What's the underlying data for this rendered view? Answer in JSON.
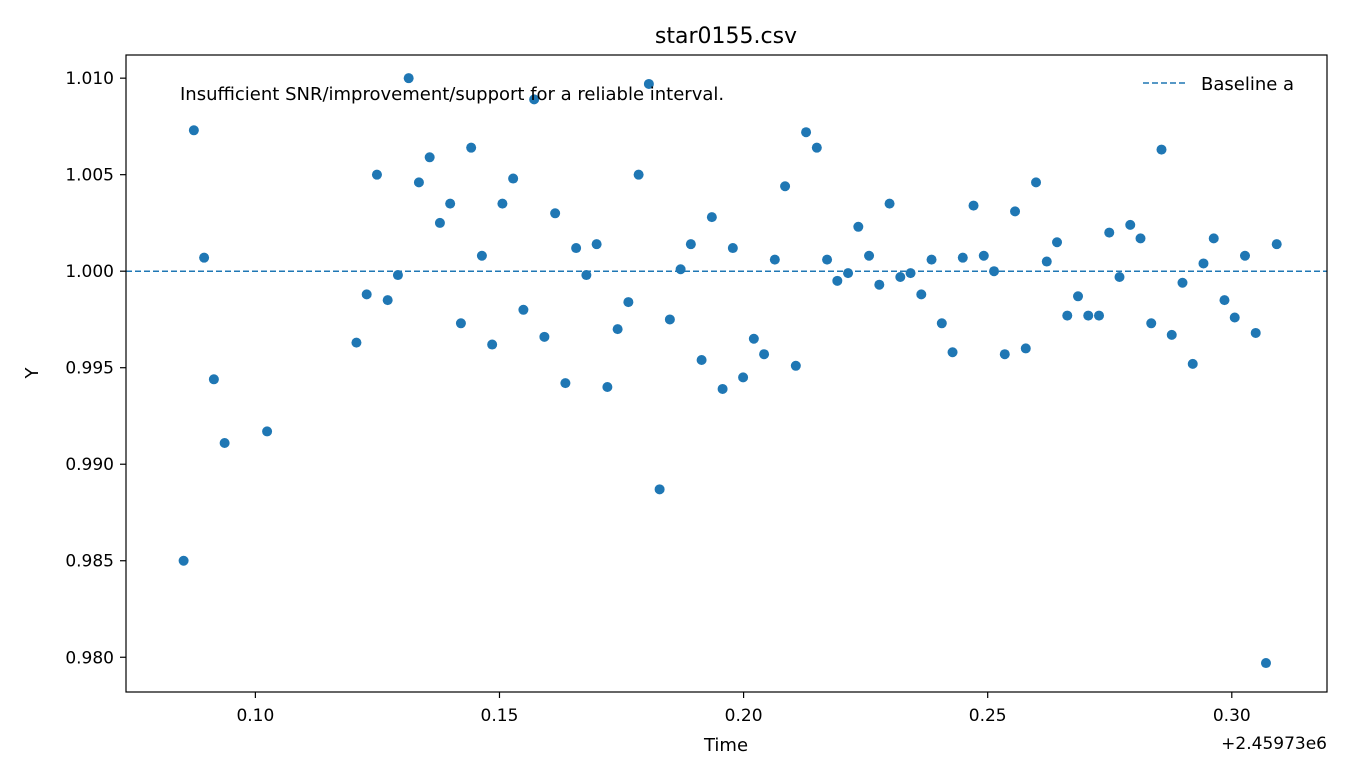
{
  "chart_data": {
    "type": "scatter",
    "title": "star0155.csv",
    "xlabel": "Time",
    "ylabel": "Y",
    "x_offset_label": "+2.45973e6",
    "annotation": "Insufficient SNR/improvement/support for a reliable interval.",
    "xlim": [
      0.0735,
      0.3195
    ],
    "ylim": [
      0.9782,
      1.0112
    ],
    "xticks": [
      0.1,
      0.15,
      0.2,
      0.25,
      0.3
    ],
    "xtick_labels": [
      "0.10",
      "0.15",
      "0.20",
      "0.25",
      "0.30"
    ],
    "yticks": [
      0.98,
      0.985,
      0.99,
      0.995,
      1.0,
      1.005,
      1.01
    ],
    "ytick_labels": [
      "0.980",
      "0.985",
      "0.990",
      "0.995",
      "1.000",
      "1.005",
      "1.010"
    ],
    "grid": false,
    "legend_position": "top-right",
    "colors": {
      "points": "#1f77b4",
      "baseline": "#1f77b4"
    },
    "baseline": {
      "name": "Baseline a",
      "y": 1.0,
      "style": "dashed"
    },
    "series": [
      {
        "x": [
          0.0853,
          0.0874,
          0.0895,
          0.0915,
          0.0937,
          0.1024,
          0.1207,
          0.1228,
          0.1249,
          0.1271,
          0.1292,
          0.1314,
          0.1335,
          0.1357,
          0.1378,
          0.1399,
          0.1421,
          0.1442,
          0.1464,
          0.1485,
          0.1506,
          0.1528,
          0.1549,
          0.1571,
          0.1592,
          0.1614,
          0.1635,
          0.1657,
          0.1678,
          0.1699,
          0.1721,
          0.1742,
          0.1764,
          0.1785,
          0.1806,
          0.1828,
          0.1849,
          0.1871,
          0.1892,
          0.1914,
          0.1935,
          0.1957,
          0.1978,
          0.1999,
          0.2021,
          0.2042,
          0.2064,
          0.2085,
          0.2107,
          0.2128,
          0.215,
          0.2171,
          0.2192,
          0.2214,
          0.2235,
          0.2257,
          0.2278,
          0.2299,
          0.2321,
          0.2342,
          0.2364,
          0.2385,
          0.2406,
          0.2428,
          0.2449,
          0.2471,
          0.2492,
          0.2513,
          0.2535,
          0.2556,
          0.2578,
          0.2599,
          0.2621,
          0.2642,
          0.2663,
          0.2685,
          0.2706,
          0.2728,
          0.2749,
          0.277,
          0.2792,
          0.2813,
          0.2835,
          0.2856,
          0.2877,
          0.2899,
          0.292,
          0.2942,
          0.2963,
          0.2985,
          0.3006,
          0.3027,
          0.3049,
          0.307,
          0.3092
        ],
        "y": [
          0.985,
          1.0073,
          1.0007,
          0.9944,
          0.9911,
          0.9917,
          0.9963,
          0.9988,
          1.005,
          0.9985,
          0.9998,
          1.01,
          1.0046,
          1.0059,
          1.0025,
          1.0035,
          0.9973,
          1.0064,
          1.0008,
          0.9962,
          1.0035,
          1.0048,
          0.998,
          1.0089,
          0.9966,
          1.003,
          0.9942,
          1.0012,
          0.9998,
          1.0014,
          0.994,
          0.997,
          0.9984,
          1.005,
          1.0097,
          0.9887,
          0.9975,
          1.0001,
          1.0014,
          0.9954,
          1.0028,
          0.9939,
          1.0012,
          0.9945,
          0.9965,
          0.9957,
          1.0006,
          1.0044,
          0.9951,
          1.0072,
          1.0064,
          1.0006,
          0.9995,
          0.9999,
          1.0023,
          1.0008,
          0.9993,
          1.0035,
          0.9997,
          0.9999,
          0.9988,
          1.0006,
          0.9973,
          0.9958,
          1.0007,
          1.0034,
          1.0008,
          1.0,
          0.9957,
          1.0031,
          0.996,
          1.0046,
          1.0005,
          1.0015,
          0.9977,
          0.9987,
          0.9977,
          0.9977,
          1.002,
          0.9997,
          1.0024,
          1.0017,
          0.9973,
          1.0063,
          0.9967,
          0.9994,
          0.9952,
          1.0004,
          1.0017,
          0.9985,
          0.9976,
          1.0008,
          0.9968,
          0.9797,
          1.0014
        ]
      }
    ]
  }
}
